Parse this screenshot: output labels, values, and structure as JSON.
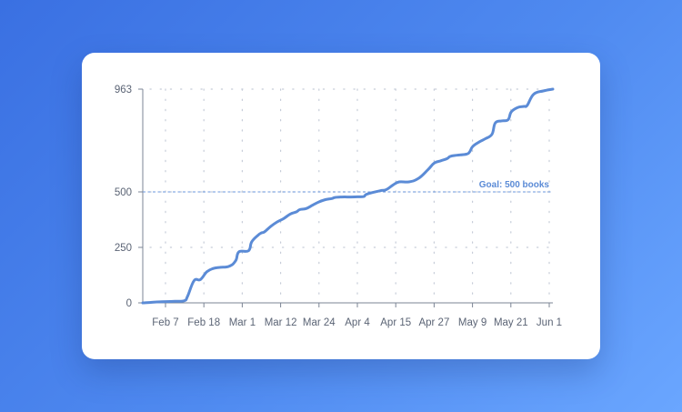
{
  "chart_data": {
    "type": "line",
    "title": "",
    "xlabel": "",
    "ylabel": "",
    "ylim": [
      0,
      963
    ],
    "yticks": [
      0,
      250,
      500,
      963
    ],
    "xticks": [
      "Feb 7",
      "Feb 18",
      "Mar 1",
      "Mar 12",
      "Mar 24",
      "Apr 4",
      "Apr 15",
      "Apr 27",
      "May 9",
      "May 21",
      "Jun 1"
    ],
    "x_domain_days": [
      0,
      128
    ],
    "grid": true,
    "goal": {
      "value": 500,
      "label": "Goal: 500 books"
    },
    "series": [
      {
        "color": "#5b8bd6",
        "x": [
          0,
          6,
          10,
          13,
          14,
          16,
          18,
          20,
          22,
          24,
          27,
          29,
          30,
          33,
          34,
          36,
          37,
          38,
          40,
          42,
          44,
          46,
          48,
          49,
          51,
          53,
          55,
          57,
          59,
          60,
          62,
          65,
          67,
          69,
          70,
          74,
          76,
          78,
          80,
          83,
          86,
          89,
          91,
          93,
          95,
          96,
          98,
          101,
          102,
          103,
          105,
          107,
          109,
          110,
          112,
          114,
          115,
          117,
          119,
          120,
          122,
          125,
          128
        ],
        "y": [
          0,
          5,
          7,
          10,
          30,
          100,
          105,
          140,
          155,
          160,
          165,
          190,
          230,
          235,
          275,
          305,
          315,
          320,
          345,
          365,
          380,
          400,
          410,
          420,
          425,
          440,
          455,
          465,
          470,
          475,
          477,
          477,
          478,
          479,
          490,
          505,
          510,
          530,
          545,
          545,
          560,
          600,
          630,
          640,
          650,
          660,
          665,
          670,
          680,
          705,
          725,
          740,
          760,
          810,
          820,
          825,
          860,
          880,
          885,
          890,
          940,
          955,
          963
        ]
      }
    ]
  }
}
